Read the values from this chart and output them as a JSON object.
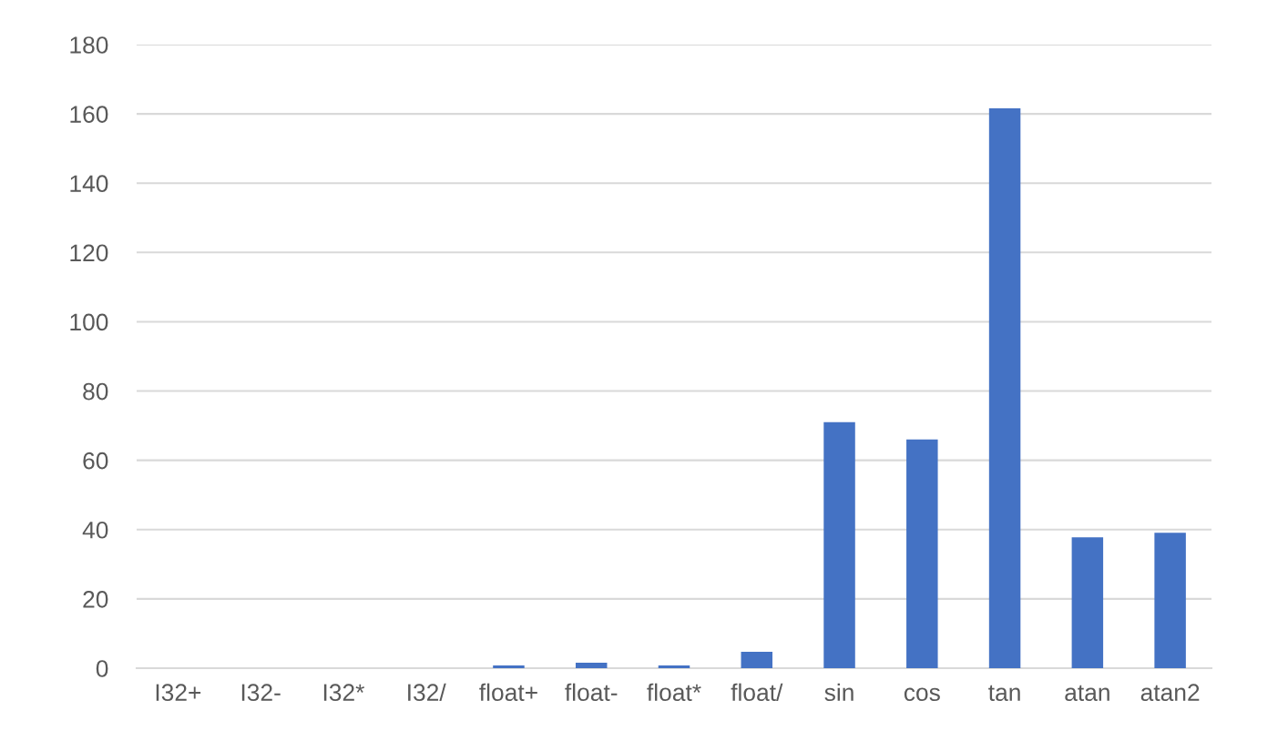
{
  "chart_data": {
    "type": "bar",
    "categories": [
      "I32+",
      "I32-",
      "I32*",
      "I32/",
      "float+",
      "float-",
      "float*",
      "float/",
      "sin",
      "cos",
      "tan",
      "atan",
      "atan2"
    ],
    "values": [
      0,
      0,
      0,
      0,
      0.8,
      1.6,
      0.8,
      4.7,
      71,
      66,
      161.6,
      37.8,
      39.1
    ],
    "color": "#4472c4",
    "ylim": [
      0,
      180
    ],
    "yticks": [
      0,
      20,
      40,
      60,
      80,
      100,
      120,
      140,
      160,
      180
    ],
    "grid": "y",
    "legend": false
  }
}
